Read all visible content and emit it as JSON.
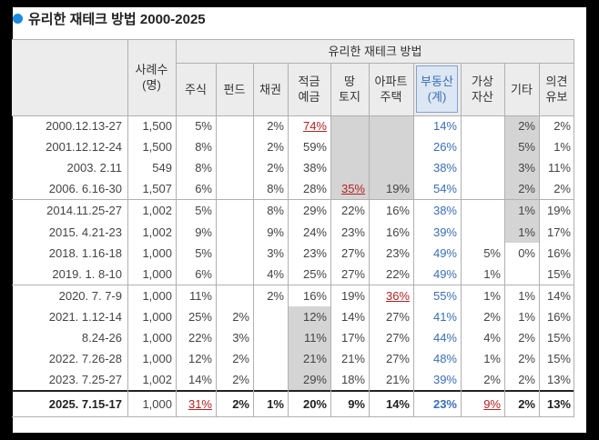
{
  "title": "유리한 재테크 방법 2000-2025",
  "header": {
    "date_col": "",
    "sample": "사례수\n(명)",
    "group": "유리한 재테크 방법",
    "cols": [
      "주식",
      "펀드",
      "채권",
      "적금\n예금",
      "땅\n토지",
      "아파트\n주택",
      "부동산\n(계)",
      "가상\n자산",
      "기타",
      "의견\n유보"
    ]
  },
  "rows": [
    {
      "date": "2000.12.13-27",
      "n": "1,500",
      "v": [
        "5%",
        "",
        "2%",
        "74%",
        "",
        "",
        "14%",
        "",
        "2%",
        "2%"
      ]
    },
    {
      "date": "2001.12.12-24",
      "n": "1,500",
      "v": [
        "8%",
        "",
        "2%",
        "59%",
        "",
        "",
        "26%",
        "",
        "5%",
        "1%"
      ]
    },
    {
      "date": "2003. 2.11",
      "n": "549",
      "v": [
        "8%",
        "",
        "2%",
        "38%",
        "",
        "",
        "38%",
        "",
        "3%",
        "11%"
      ]
    },
    {
      "date": "2006. 6.16-30",
      "n": "1,507",
      "v": [
        "6%",
        "",
        "8%",
        "28%",
        "35%",
        "19%",
        "54%",
        "",
        "2%",
        "2%"
      ]
    },
    {
      "date": "2014.11.25-27",
      "n": "1,002",
      "v": [
        "5%",
        "",
        "8%",
        "29%",
        "22%",
        "16%",
        "38%",
        "",
        "1%",
        "19%"
      ]
    },
    {
      "date": "2015. 4.21-23",
      "n": "1,002",
      "v": [
        "9%",
        "",
        "9%",
        "24%",
        "23%",
        "16%",
        "39%",
        "",
        "1%",
        "17%"
      ]
    },
    {
      "date": "2018. 1.16-18",
      "n": "1,000",
      "v": [
        "5%",
        "",
        "3%",
        "23%",
        "27%",
        "23%",
        "49%",
        "5%",
        "0%",
        "16%"
      ]
    },
    {
      "date": "2019. 1. 8-10",
      "n": "1,000",
      "v": [
        "6%",
        "",
        "4%",
        "25%",
        "27%",
        "22%",
        "49%",
        "1%",
        "",
        "15%"
      ]
    },
    {
      "date": "2020. 7. 7-9",
      "n": "1,000",
      "v": [
        "11%",
        "",
        "2%",
        "16%",
        "19%",
        "36%",
        "55%",
        "1%",
        "1%",
        "14%"
      ]
    },
    {
      "date": "2021. 1.12-14",
      "n": "1,000",
      "v": [
        "25%",
        "2%",
        "",
        "12%",
        "14%",
        "27%",
        "41%",
        "2%",
        "1%",
        "16%"
      ]
    },
    {
      "date": "8.24-26",
      "n": "1,000",
      "v": [
        "22%",
        "3%",
        "",
        "11%",
        "17%",
        "27%",
        "44%",
        "4%",
        "2%",
        "15%"
      ]
    },
    {
      "date": "2022. 7.26-28",
      "n": "1,000",
      "v": [
        "12%",
        "2%",
        "",
        "21%",
        "21%",
        "27%",
        "48%",
        "1%",
        "2%",
        "15%"
      ]
    },
    {
      "date": "2023. 7.25-27",
      "n": "1,002",
      "v": [
        "14%",
        "2%",
        "",
        "29%",
        "18%",
        "21%",
        "39%",
        "2%",
        "2%",
        "13%"
      ]
    },
    {
      "date": "2025. 7.15-17",
      "n": "1,000",
      "v": [
        "31%",
        "2%",
        "1%",
        "20%",
        "9%",
        "14%",
        "23%",
        "9%",
        "2%",
        "13%"
      ]
    }
  ],
  "colors": {
    "accent_dot": "#1a8be0",
    "blue_text": "#3a6fb5",
    "red_text": "#b22222",
    "grey_fill": "#d4d4d4"
  }
}
